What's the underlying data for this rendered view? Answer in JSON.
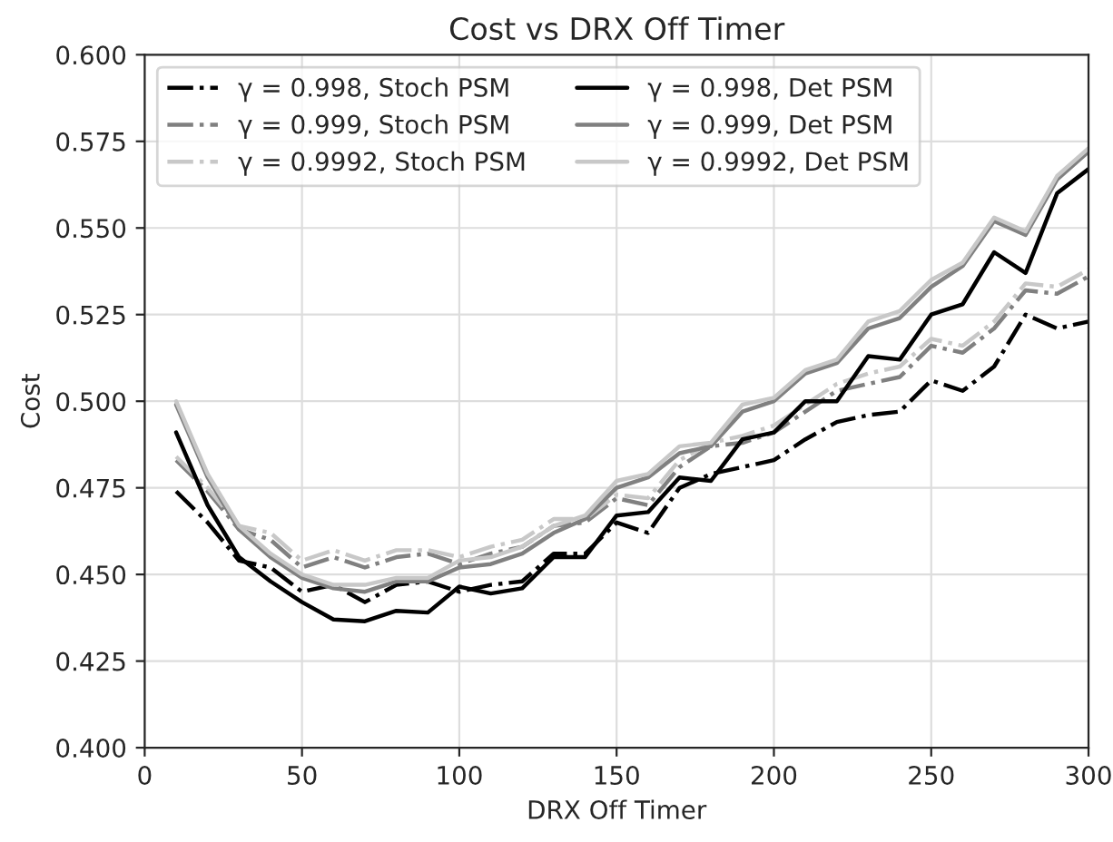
{
  "chart_data": {
    "type": "line",
    "title": "Cost vs DRX Off Timer",
    "xlabel": "DRX Off Timer",
    "ylabel": "Cost",
    "x": [
      10,
      20,
      30,
      40,
      50,
      60,
      70,
      80,
      90,
      100,
      110,
      120,
      130,
      140,
      150,
      160,
      170,
      180,
      190,
      200,
      210,
      220,
      230,
      240,
      250,
      260,
      270,
      280,
      290,
      300
    ],
    "series": [
      {
        "name": "γ = 0.998, Stoch PSM",
        "color": "#000000",
        "line_style": "dashdot",
        "values": [
          0.474,
          0.465,
          0.454,
          0.452,
          0.445,
          0.447,
          0.442,
          0.447,
          0.448,
          0.445,
          0.447,
          0.448,
          0.456,
          0.456,
          0.465,
          0.462,
          0.475,
          0.479,
          0.481,
          0.483,
          0.489,
          0.494,
          0.496,
          0.497,
          0.506,
          0.503,
          0.51,
          0.525,
          0.521,
          0.523
        ]
      },
      {
        "name": "γ = 0.999, Stoch PSM",
        "color": "#808080",
        "line_style": "dashdot",
        "values": [
          0.483,
          0.474,
          0.463,
          0.46,
          0.452,
          0.455,
          0.452,
          0.455,
          0.456,
          0.453,
          0.456,
          0.458,
          0.464,
          0.465,
          0.472,
          0.47,
          0.481,
          0.487,
          0.488,
          0.491,
          0.497,
          0.503,
          0.505,
          0.507,
          0.516,
          0.514,
          0.521,
          0.532,
          0.531,
          0.536
        ]
      },
      {
        "name": "γ = 0.9992, Stoch PSM",
        "color": "#c8c8c8",
        "line_style": "dashdot",
        "values": [
          0.484,
          0.475,
          0.464,
          0.462,
          0.454,
          0.457,
          0.454,
          0.457,
          0.457,
          0.455,
          0.458,
          0.46,
          0.466,
          0.466,
          0.473,
          0.472,
          0.483,
          0.488,
          0.49,
          0.493,
          0.499,
          0.505,
          0.508,
          0.51,
          0.518,
          0.516,
          0.523,
          0.534,
          0.533,
          0.538
        ]
      },
      {
        "name": "γ = 0.998, Det PSM",
        "color": "#000000",
        "line_style": "solid",
        "values": [
          0.491,
          0.47,
          0.455,
          0.448,
          0.442,
          0.437,
          0.4365,
          0.4395,
          0.439,
          0.4465,
          0.4445,
          0.446,
          0.455,
          0.455,
          0.467,
          0.468,
          0.478,
          0.477,
          0.489,
          0.491,
          0.5,
          0.5,
          0.513,
          0.512,
          0.525,
          0.528,
          0.543,
          0.537,
          0.56,
          0.567
        ]
      },
      {
        "name": "γ = 0.999, Det PSM",
        "color": "#808080",
        "line_style": "solid",
        "values": [
          0.499,
          0.478,
          0.463,
          0.455,
          0.449,
          0.446,
          0.445,
          0.448,
          0.448,
          0.452,
          0.453,
          0.456,
          0.462,
          0.466,
          0.475,
          0.478,
          0.485,
          0.487,
          0.497,
          0.5,
          0.508,
          0.511,
          0.521,
          0.524,
          0.533,
          0.539,
          0.552,
          0.548,
          0.564,
          0.572
        ]
      },
      {
        "name": "γ = 0.9992, Det PSM",
        "color": "#c8c8c8",
        "line_style": "solid",
        "values": [
          0.5,
          0.479,
          0.464,
          0.456,
          0.45,
          0.447,
          0.447,
          0.449,
          0.449,
          0.454,
          0.455,
          0.458,
          0.464,
          0.467,
          0.477,
          0.479,
          0.487,
          0.488,
          0.499,
          0.501,
          0.509,
          0.512,
          0.523,
          0.526,
          0.535,
          0.54,
          0.553,
          0.549,
          0.565,
          0.573
        ]
      }
    ],
    "xlim": [
      0,
      300
    ],
    "xticks": [
      0,
      50,
      100,
      150,
      200,
      250,
      300
    ],
    "ylim": [
      0.4,
      0.6
    ],
    "yticks": [
      {
        "value": 0.4,
        "label": "0.400"
      },
      {
        "value": 0.425,
        "label": "0.425"
      },
      {
        "value": 0.45,
        "label": "0.450"
      },
      {
        "value": 0.475,
        "label": "0.475"
      },
      {
        "value": 0.5,
        "label": "0.500"
      },
      {
        "value": 0.525,
        "label": "0.525"
      },
      {
        "value": 0.55,
        "label": "0.550"
      },
      {
        "value": 0.575,
        "label": "0.575"
      },
      {
        "value": 0.6,
        "label": "0.600"
      }
    ],
    "grid": true,
    "legend": "top left"
  }
}
